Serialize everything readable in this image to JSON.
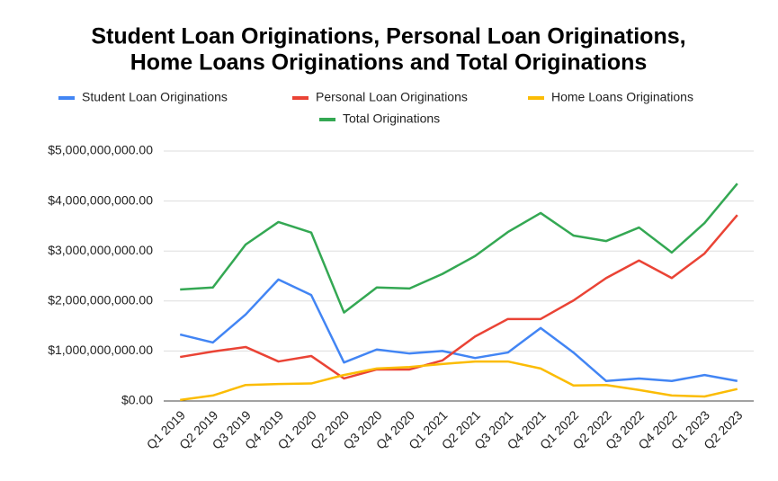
{
  "chart_data": {
    "type": "line",
    "title": [
      "Student Loan Originations, Personal Loan Originations,",
      "Home Loans Originations and Total Originations"
    ],
    "categories": [
      "Q1 2019",
      "Q2 2019",
      "Q3 2019",
      "Q4 2019",
      "Q1 2020",
      "Q2 2020",
      "Q3 2020",
      "Q4 2020",
      "Q1 2021",
      "Q2 2021",
      "Q3 2021",
      "Q4 2021",
      "Q1 2022",
      "Q2 2022",
      "Q3 2022",
      "Q4 2022",
      "Q1 2023",
      "Q2 2023"
    ],
    "series": [
      {
        "name": "Student Loan Originations",
        "color": "#4285f4",
        "values": [
          1330000000,
          1170000000,
          1730000000,
          2430000000,
          2120000000,
          770000000,
          1030000000,
          950000000,
          1000000000,
          860000000,
          970000000,
          1460000000,
          970000000,
          400000000,
          450000000,
          400000000,
          520000000,
          400000000
        ]
      },
      {
        "name": "Personal Loan Originations",
        "color": "#ea4335",
        "values": [
          880000000,
          990000000,
          1080000000,
          790000000,
          900000000,
          450000000,
          630000000,
          630000000,
          810000000,
          1290000000,
          1640000000,
          1640000000,
          2010000000,
          2460000000,
          2810000000,
          2460000000,
          2950000000,
          3720000000
        ]
      },
      {
        "name": "Home Loans Originations",
        "color": "#fbbc04",
        "values": [
          20000000,
          110000000,
          320000000,
          340000000,
          350000000,
          520000000,
          650000000,
          680000000,
          740000000,
          790000000,
          790000000,
          650000000,
          310000000,
          320000000,
          220000000,
          110000000,
          90000000,
          240000000
        ]
      },
      {
        "name": "Total Originations",
        "color": "#34a853",
        "values": [
          2230000000,
          2270000000,
          3130000000,
          3580000000,
          3370000000,
          1770000000,
          2270000000,
          2250000000,
          2540000000,
          2900000000,
          3380000000,
          3760000000,
          3310000000,
          3200000000,
          3470000000,
          2970000000,
          3560000000,
          4350000000
        ]
      }
    ],
    "ylim": [
      0,
      5000000000
    ],
    "yticks": [
      {
        "value": 0,
        "label": "$0.00"
      },
      {
        "value": 1000000000,
        "label": "$1,000,000,000.00"
      },
      {
        "value": 2000000000,
        "label": "$2,000,000,000.00"
      },
      {
        "value": 3000000000,
        "label": "$3,000,000,000.00"
      },
      {
        "value": 4000000000,
        "label": "$4,000,000,000.00"
      },
      {
        "value": 5000000000,
        "label": "$5,000,000,000.00"
      }
    ],
    "grid": true,
    "legend": "top"
  }
}
